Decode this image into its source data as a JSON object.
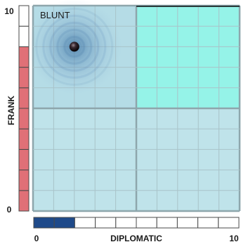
{
  "chart_data": {
    "type": "scatter",
    "title": "",
    "xlabel": "DIPLOMATIC",
    "ylabel": "FRANK",
    "xlim": [
      0,
      10
    ],
    "ylim": [
      0,
      10
    ],
    "x_tick_labels": [
      "0",
      "10"
    ],
    "y_tick_labels": [
      "0",
      "10"
    ],
    "grid": true,
    "quadrants": [
      {
        "label": "BLUNT",
        "position": "top-left",
        "highlighted": false,
        "color": "#b5dce6"
      },
      {
        "label": "",
        "position": "top-right",
        "highlighted": true,
        "color": "#95f3e8"
      },
      {
        "label": "",
        "position": "bottom-left",
        "highlighted": false,
        "color": "#bfe3ea"
      },
      {
        "label": "",
        "position": "bottom-right",
        "highlighted": false,
        "color": "#bfe3ea"
      }
    ],
    "points": [
      {
        "x": 2,
        "y": 8
      }
    ],
    "x_bar": {
      "segments": 10,
      "filled": 2,
      "fill_color": "#1f4a8a"
    },
    "y_bar": {
      "segments": 10,
      "filled": 8,
      "fill_color": "#e07077"
    }
  }
}
